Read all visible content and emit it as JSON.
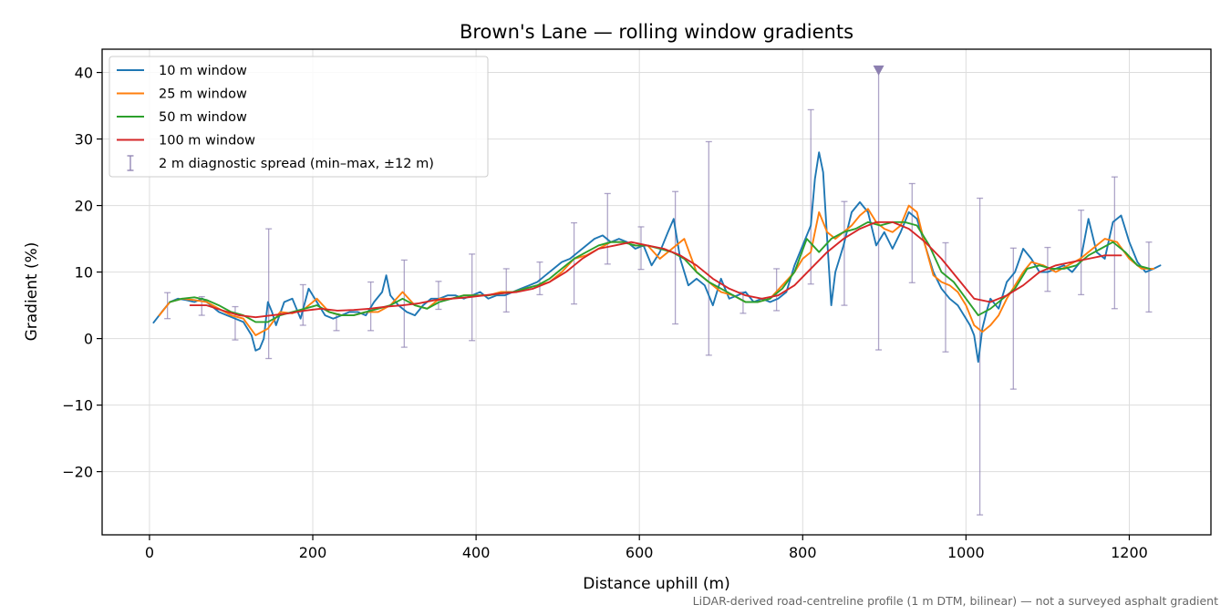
{
  "chart_data": {
    "type": "line",
    "title": "Brown's Lane — rolling window gradients",
    "xlabel": "Distance uphill (m)",
    "ylabel": "Gradient (%)",
    "footnote": "LiDAR-derived road-centreline profile (1 m DTM, bilinear) — not a surveyed asphalt gradient",
    "xlim": [
      -58,
      1300
    ],
    "ylim": [
      -29.5,
      43.5
    ],
    "xticks": [
      0,
      200,
      400,
      600,
      800,
      1000,
      1200
    ],
    "yticks": [
      -20,
      -10,
      0,
      10,
      20,
      30,
      40
    ],
    "xtick_labels": [
      "0",
      "200",
      "400",
      "600",
      "800",
      "1000",
      "1200"
    ],
    "ytick_labels": [
      "−20",
      "−10",
      "0",
      "10",
      "20",
      "30",
      "40"
    ],
    "grid": true,
    "legend_position": "top-left",
    "series": [
      {
        "name": "10 m window",
        "color": "#1f77b4",
        "x": [
          5,
          15,
          25,
          35,
          45,
          55,
          65,
          75,
          85,
          95,
          105,
          115,
          125,
          130,
          135,
          140,
          145,
          150,
          155,
          165,
          175,
          185,
          195,
          205,
          215,
          225,
          235,
          245,
          255,
          265,
          275,
          285,
          290,
          295,
          305,
          315,
          325,
          335,
          345,
          355,
          365,
          375,
          385,
          395,
          405,
          415,
          425,
          435,
          445,
          455,
          465,
          475,
          485,
          495,
          505,
          515,
          525,
          535,
          545,
          555,
          565,
          575,
          585,
          595,
          605,
          615,
          625,
          635,
          642,
          650,
          660,
          670,
          680,
          690,
          700,
          710,
          720,
          730,
          740,
          750,
          760,
          770,
          780,
          790,
          800,
          810,
          815,
          820,
          825,
          830,
          835,
          840,
          850,
          860,
          870,
          880,
          890,
          900,
          910,
          920,
          930,
          940,
          950,
          960,
          970,
          980,
          990,
          1000,
          1005,
          1010,
          1015,
          1020,
          1025,
          1030,
          1040,
          1050,
          1060,
          1070,
          1080,
          1090,
          1100,
          1110,
          1120,
          1130,
          1140,
          1150,
          1160,
          1170,
          1180,
          1190,
          1200,
          1210,
          1220,
          1230,
          1238
        ],
        "y": [
          2.4,
          4.0,
          5.5,
          6.0,
          5.8,
          5.5,
          6.0,
          5.0,
          4.0,
          3.5,
          3.0,
          2.5,
          0.5,
          -1.8,
          -1.5,
          0.0,
          5.5,
          4.0,
          2.0,
          5.5,
          6.0,
          3.0,
          7.5,
          5.5,
          3.5,
          3.0,
          3.5,
          4.0,
          4.0,
          3.5,
          5.5,
          7.0,
          9.5,
          6.5,
          5.0,
          4.0,
          3.5,
          5.0,
          6.0,
          6.0,
          6.5,
          6.5,
          6.0,
          6.5,
          7.0,
          6.0,
          6.5,
          6.5,
          7.0,
          7.5,
          8.0,
          8.5,
          9.5,
          10.5,
          11.5,
          12.0,
          13.0,
          14.0,
          15.0,
          15.5,
          14.5,
          15.0,
          14.5,
          13.5,
          14.0,
          11.0,
          13.0,
          16.0,
          18.0,
          12.0,
          8.0,
          9.0,
          8.0,
          5.0,
          9.0,
          6.0,
          6.5,
          7.0,
          5.5,
          6.0,
          5.5,
          6.0,
          7.0,
          11.0,
          14.0,
          17.0,
          24.0,
          28.0,
          25.0,
          15.0,
          5.0,
          10.0,
          14.0,
          19.0,
          20.5,
          19.0,
          14.0,
          16.0,
          13.5,
          16.0,
          19.0,
          18.0,
          14.0,
          10.0,
          7.5,
          6.0,
          5.0,
          3.0,
          2.0,
          0.5,
          -3.5,
          1.5,
          4.0,
          6.0,
          4.5,
          8.5,
          10.0,
          13.5,
          12.0,
          10.0,
          10.0,
          10.5,
          11.0,
          10.0,
          11.5,
          18.0,
          13.0,
          12.0,
          17.5,
          18.5,
          14.5,
          11.5,
          10.0,
          10.5,
          11.0
        ]
      },
      {
        "name": "25 m window",
        "color": "#ff7f0e",
        "x": [
          12,
          25,
          40,
          55,
          70,
          85,
          100,
          115,
          130,
          145,
          160,
          175,
          190,
          205,
          220,
          235,
          250,
          265,
          280,
          295,
          310,
          325,
          340,
          355,
          370,
          385,
          400,
          415,
          430,
          445,
          460,
          475,
          490,
          505,
          520,
          535,
          550,
          565,
          580,
          595,
          610,
          625,
          640,
          655,
          670,
          685,
          700,
          715,
          730,
          745,
          760,
          775,
          790,
          800,
          810,
          820,
          830,
          840,
          850,
          860,
          870,
          880,
          890,
          900,
          910,
          920,
          930,
          940,
          950,
          960,
          970,
          980,
          990,
          1000,
          1010,
          1020,
          1030,
          1040,
          1050,
          1060,
          1070,
          1080,
          1095,
          1110,
          1125,
          1140,
          1155,
          1170,
          1185,
          1200,
          1215,
          1230
        ],
        "y": [
          3.5,
          5.5,
          6.0,
          5.8,
          5.5,
          4.5,
          3.5,
          3.0,
          0.5,
          1.5,
          4.0,
          3.8,
          4.5,
          6.0,
          4.0,
          3.5,
          3.5,
          4.0,
          4.0,
          5.0,
          7.0,
          5.0,
          4.5,
          6.0,
          6.0,
          6.5,
          6.5,
          6.5,
          7.0,
          7.0,
          7.5,
          8.0,
          8.5,
          10.0,
          12.0,
          12.5,
          13.5,
          14.5,
          14.5,
          14.0,
          14.0,
          12.0,
          13.5,
          15.0,
          10.0,
          8.5,
          7.0,
          6.5,
          5.5,
          5.5,
          6.0,
          8.0,
          10.0,
          12.0,
          13.0,
          19.0,
          16.0,
          15.0,
          16.0,
          17.0,
          18.5,
          19.5,
          17.5,
          16.5,
          16.0,
          17.0,
          20.0,
          19.0,
          14.0,
          9.5,
          8.5,
          8.0,
          7.0,
          5.0,
          2.0,
          1.0,
          2.0,
          3.5,
          6.0,
          8.0,
          10.0,
          11.5,
          11.0,
          10.0,
          11.0,
          12.0,
          13.5,
          15.0,
          14.5,
          12.0,
          10.5,
          10.5
        ]
      },
      {
        "name": "50 m window",
        "color": "#2ca02c",
        "x": [
          25,
          40,
          55,
          70,
          85,
          100,
          115,
          130,
          145,
          160,
          175,
          190,
          205,
          220,
          235,
          250,
          265,
          280,
          295,
          310,
          325,
          340,
          355,
          370,
          385,
          400,
          415,
          430,
          445,
          460,
          475,
          490,
          505,
          520,
          535,
          550,
          565,
          580,
          595,
          610,
          625,
          640,
          655,
          670,
          685,
          700,
          715,
          730,
          745,
          760,
          775,
          790,
          805,
          820,
          835,
          850,
          865,
          880,
          895,
          910,
          925,
          940,
          955,
          970,
          985,
          1000,
          1015,
          1030,
          1045,
          1060,
          1075,
          1090,
          1105,
          1120,
          1135,
          1150,
          1165,
          1180,
          1195,
          1210,
          1225
        ],
        "y": [
          5.5,
          6.0,
          6.2,
          5.8,
          5.0,
          4.0,
          3.5,
          2.5,
          2.5,
          3.5,
          4.0,
          4.5,
          5.0,
          4.0,
          3.5,
          3.5,
          4.0,
          4.5,
          5.0,
          6.0,
          5.0,
          4.5,
          5.5,
          6.0,
          6.5,
          6.5,
          6.5,
          6.8,
          7.0,
          7.5,
          8.0,
          9.0,
          10.5,
          12.0,
          13.0,
          14.0,
          14.5,
          14.5,
          14.0,
          14.0,
          13.5,
          13.0,
          12.0,
          10.0,
          8.5,
          7.5,
          6.5,
          5.5,
          5.5,
          6.0,
          7.5,
          10.0,
          15.0,
          13.0,
          15.0,
          16.0,
          16.5,
          17.5,
          17.0,
          17.5,
          17.5,
          17.0,
          14.0,
          10.0,
          8.5,
          6.0,
          3.5,
          4.5,
          6.0,
          7.5,
          10.5,
          11.0,
          10.5,
          10.5,
          11.0,
          12.5,
          13.5,
          14.5,
          13.0,
          11.0,
          10.5
        ]
      },
      {
        "name": "100 m window",
        "color": "#d62728",
        "x": [
          50,
          70,
          90,
          110,
          130,
          150,
          170,
          190,
          210,
          230,
          250,
          270,
          290,
          310,
          330,
          350,
          370,
          390,
          410,
          430,
          450,
          470,
          490,
          510,
          530,
          550,
          570,
          590,
          610,
          630,
          650,
          670,
          690,
          710,
          730,
          750,
          770,
          790,
          810,
          830,
          850,
          870,
          890,
          910,
          930,
          950,
          970,
          990,
          1010,
          1030,
          1050,
          1070,
          1090,
          1110,
          1130,
          1150,
          1170,
          1190
        ],
        "y": [
          5.0,
          5.0,
          4.2,
          3.5,
          3.2,
          3.5,
          3.8,
          4.2,
          4.5,
          4.2,
          4.3,
          4.5,
          4.8,
          5.0,
          5.3,
          5.8,
          6.0,
          6.2,
          6.5,
          6.8,
          7.0,
          7.5,
          8.5,
          10.0,
          12.0,
          13.5,
          14.0,
          14.5,
          14.0,
          13.5,
          12.5,
          11.0,
          9.0,
          7.5,
          6.5,
          6.0,
          6.5,
          8.0,
          10.5,
          13.0,
          15.0,
          16.5,
          17.5,
          17.5,
          16.5,
          14.5,
          12.0,
          9.0,
          6.0,
          5.5,
          6.5,
          8.0,
          10.0,
          11.0,
          11.5,
          12.0,
          12.5,
          12.5
        ]
      }
    ],
    "spread": {
      "name": "2 m diagnostic spread (min–max, ±12 m)",
      "color": "#8c7fb0",
      "x": [
        22,
        64,
        105,
        146,
        188,
        229,
        271,
        312,
        354,
        395,
        437,
        478,
        520,
        561,
        602,
        644,
        685,
        727,
        768,
        810,
        851,
        893,
        934,
        975,
        1017,
        1058,
        1100,
        1141,
        1182,
        1224
      ],
      "min": [
        3,
        3.5,
        -0.2,
        -3,
        2,
        1.2,
        1.2,
        -1.3,
        4.4,
        -0.3,
        4,
        6.6,
        5.2,
        11.2,
        10.4,
        2.2,
        -2.5,
        3.8,
        4.2,
        8.2,
        5,
        -1.7,
        8.4,
        -2,
        -26.5,
        -7.6,
        7.1,
        6.6,
        4.5,
        4
      ],
      "max": [
        6.9,
        6.3,
        4.8,
        16.5,
        8.1,
        3.7,
        8.5,
        11.8,
        8.6,
        12.7,
        10.5,
        11.5,
        17.4,
        21.8,
        16.8,
        22.1,
        29.6,
        7,
        10.5,
        34.4,
        20.6,
        40.5,
        23.3,
        14.4,
        21.1,
        13.6,
        13.7,
        19.3,
        24.3,
        14.5
      ]
    },
    "marker": {
      "x": 893,
      "y": 40.5
    }
  }
}
